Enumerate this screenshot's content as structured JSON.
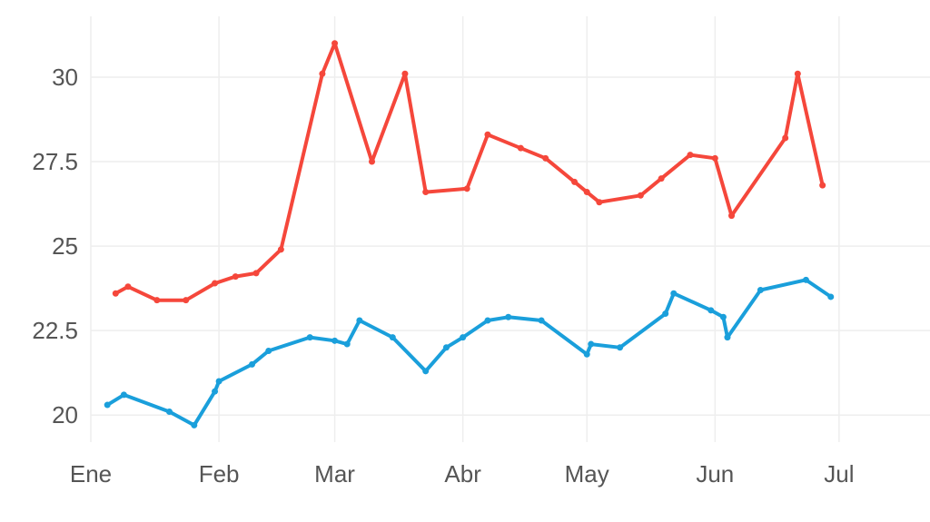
{
  "chart_data": {
    "type": "line",
    "title": "",
    "xlabel": "",
    "ylabel": "",
    "grid": true,
    "x_ticks": [
      {
        "label": "Ene",
        "x": "2023-01-01"
      },
      {
        "label": "Feb",
        "x": "2023-02-01"
      },
      {
        "label": "Mar",
        "x": "2023-03-01"
      },
      {
        "label": "Abr",
        "x": "2023-04-01"
      },
      {
        "label": "May",
        "x": "2023-05-01"
      },
      {
        "label": "Jun",
        "x": "2023-06-01"
      },
      {
        "label": "Jul",
        "x": "2023-07-01"
      }
    ],
    "xlim": [
      "2023-01-01",
      "2023-07-23"
    ],
    "y_ticks": [
      {
        "label": "20",
        "value": 20
      },
      {
        "label": "22.5",
        "value": 22.5
      },
      {
        "label": "25",
        "value": 25
      },
      {
        "label": "27.5",
        "value": 27.5
      },
      {
        "label": "30",
        "value": 30
      }
    ],
    "ylim": [
      19.2,
      31.8
    ],
    "series": [
      {
        "color": "#f5473b",
        "points": [
          {
            "x": "2023-01-07",
            "y": 23.6
          },
          {
            "x": "2023-01-10",
            "y": 23.8
          },
          {
            "x": "2023-01-17",
            "y": 23.4
          },
          {
            "x": "2023-01-24",
            "y": 23.4
          },
          {
            "x": "2023-01-31",
            "y": 23.9
          },
          {
            "x": "2023-02-05",
            "y": 24.1
          },
          {
            "x": "2023-02-10",
            "y": 24.2
          },
          {
            "x": "2023-02-16",
            "y": 24.9
          },
          {
            "x": "2023-02-26",
            "y": 30.1
          },
          {
            "x": "2023-03-01",
            "y": 31.0
          },
          {
            "x": "2023-03-10",
            "y": 27.5
          },
          {
            "x": "2023-03-18",
            "y": 30.1
          },
          {
            "x": "2023-03-23",
            "y": 26.6
          },
          {
            "x": "2023-04-02",
            "y": 26.7
          },
          {
            "x": "2023-04-07",
            "y": 28.3
          },
          {
            "x": "2023-04-15",
            "y": 27.9
          },
          {
            "x": "2023-04-21",
            "y": 27.6
          },
          {
            "x": "2023-04-28",
            "y": 26.9
          },
          {
            "x": "2023-05-01",
            "y": 26.6
          },
          {
            "x": "2023-05-04",
            "y": 26.3
          },
          {
            "x": "2023-05-14",
            "y": 26.5
          },
          {
            "x": "2023-05-19",
            "y": 27.0
          },
          {
            "x": "2023-05-26",
            "y": 27.7
          },
          {
            "x": "2023-06-01",
            "y": 27.6
          },
          {
            "x": "2023-06-05",
            "y": 25.9
          },
          {
            "x": "2023-06-18",
            "y": 28.2
          },
          {
            "x": "2023-06-21",
            "y": 30.1
          },
          {
            "x": "2023-06-27",
            "y": 26.8
          }
        ]
      },
      {
        "color": "#1a9fdb",
        "points": [
          {
            "x": "2023-01-05",
            "y": 20.3
          },
          {
            "x": "2023-01-09",
            "y": 20.6
          },
          {
            "x": "2023-01-20",
            "y": 20.1
          },
          {
            "x": "2023-01-26",
            "y": 19.7
          },
          {
            "x": "2023-01-31",
            "y": 20.7
          },
          {
            "x": "2023-02-01",
            "y": 21.0
          },
          {
            "x": "2023-02-09",
            "y": 21.5
          },
          {
            "x": "2023-02-13",
            "y": 21.9
          },
          {
            "x": "2023-02-23",
            "y": 22.3
          },
          {
            "x": "2023-03-01",
            "y": 22.2
          },
          {
            "x": "2023-03-04",
            "y": 22.1
          },
          {
            "x": "2023-03-07",
            "y": 22.8
          },
          {
            "x": "2023-03-15",
            "y": 22.3
          },
          {
            "x": "2023-03-23",
            "y": 21.3
          },
          {
            "x": "2023-03-28",
            "y": 22.0
          },
          {
            "x": "2023-04-01",
            "y": 22.3
          },
          {
            "x": "2023-04-07",
            "y": 22.8
          },
          {
            "x": "2023-04-12",
            "y": 22.9
          },
          {
            "x": "2023-04-20",
            "y": 22.8
          },
          {
            "x": "2023-05-01",
            "y": 21.8
          },
          {
            "x": "2023-05-02",
            "y": 22.1
          },
          {
            "x": "2023-05-09",
            "y": 22.0
          },
          {
            "x": "2023-05-20",
            "y": 23.0
          },
          {
            "x": "2023-05-22",
            "y": 23.6
          },
          {
            "x": "2023-05-31",
            "y": 23.1
          },
          {
            "x": "2023-06-03",
            "y": 22.9
          },
          {
            "x": "2023-06-04",
            "y": 22.3
          },
          {
            "x": "2023-06-12",
            "y": 23.7
          },
          {
            "x": "2023-06-23",
            "y": 24.0
          },
          {
            "x": "2023-06-29",
            "y": 23.5
          }
        ]
      }
    ]
  }
}
